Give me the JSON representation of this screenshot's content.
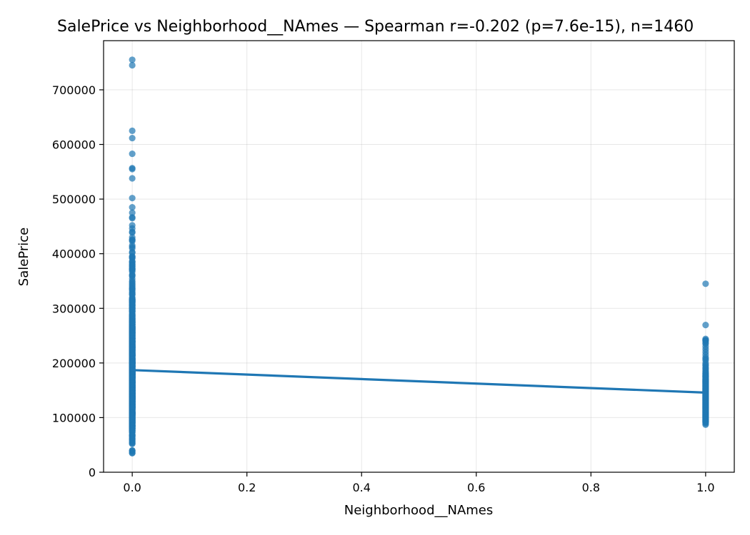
{
  "chart_data": {
    "type": "scatter",
    "title": "SalePrice vs Neighborhood__NAmes — Spearman r=-0.202 (p=7.6e-15), n=1460",
    "xlabel": "Neighborhood__NAmes",
    "ylabel": "SalePrice",
    "xlim": [
      -0.05,
      1.05
    ],
    "ylim": [
      0,
      790000
    ],
    "xticks": [
      0.0,
      0.2,
      0.4,
      0.6,
      0.8,
      1.0
    ],
    "xtick_labels": [
      "0.0",
      "0.2",
      "0.4",
      "0.6",
      "0.8",
      "1.0"
    ],
    "yticks": [
      0,
      100000,
      200000,
      300000,
      400000,
      500000,
      600000,
      700000
    ],
    "ytick_labels": [
      "0",
      "100000",
      "200000",
      "300000",
      "400000",
      "500000",
      "600000",
      "700000"
    ],
    "grid": true,
    "point_color": "#1f77b4",
    "line_color": "#1f77b4",
    "series": [
      {
        "x": 0,
        "values": [
          755000,
          745000,
          625000,
          611657,
          582933,
          556581,
          555000,
          538000,
          501837,
          485000,
          475000,
          466500,
          465000,
          451950,
          446261,
          440000,
          438780,
          430000,
          426000,
          424870,
          423000,
          415298,
          412500,
          410000,
          402861,
          402000,
          395192,
          394617,
          392500,
          392000,
          386250,
          385000,
          383970,
          381000,
          380000,
          377500,
          377426,
          375000,
          372500,
          372402,
          370878,
          369900,
          367294,
          361919,
          360000,
          359100,
          354000,
          350000,
          348000,
          345000,
          342643,
          340000,
          337500,
          336000,
          335000,
          333168,
          330000,
          328000,
          325624,
          325000,
          320000,
          318061,
          317000,
          315750,
          315500,
          315000,
          314813,
          313000,
          312500,
          311872,
          311500,
          310000,
          309000,
          307000,
          306000,
          305900,
          305000,
          303477,
          302000,
          301000,
          300000,
          299800,
          298236,
          297000,
          295493,
          295000,
          294000,
          293077,
          290000,
          289000,
          287090,
          287000,
          286000,
          285000,
          284000,
          282922,
          281213,
          281000,
          280000,
          279500,
          278000,
          277500,
          277000,
          275500,
          275000,
          274970,
          274900,
          274300,
          274000,
          272000,
          271900,
          271000,
          270000,
          269790,
          269500,
          268000,
          267000,
          266500,
          266000,
          265979,
          265900,
          265000,
          264561,
          264132,
          263435,
          263000,
          262500,
          262280,
          262000,
          261500,
          260400,
          260000,
          259500,
          259000,
          258000,
          257500,
          257000,
          256300,
          256000,
          255900,
          255500,
          255000,
          254900,
          254000,
          253293,
          253000,
          252678,
          252000,
          251000,
          250580,
          250000,
          249700,
          248900,
          248328,
          248000,
          246578,
          245700,
          245500,
          245350,
          245000,
          244600,
          244400,
          244000,
          243000,
          242000,
          241500,
          241000,
          240000,
          239900,
          239799,
          239686,
          239500,
          239000,
          238500,
          238000,
          237500,
          237000,
          236500,
          236000,
          235128,
          235000,
          234000,
          233230,
          233170,
          233000,
          232600,
          232000,
          231500,
          230500,
          230348,
          230000,
          229456,
          229000,
          228950,
          228500,
          228000,
          227875,
          227680,
          227000,
          226700,
          226000,
          225000,
          224900,
          224500,
          224000,
          223500,
          223000,
          222500,
          222000,
          221500,
          221000,
          220000,
          219500,
          219210,
          219000,
          218000,
          217500,
          217000,
          216837,
          216500,
          216000,
          215200,
          215000,
          214900,
          214500,
          214000,
          213500,
          213490,
          213250,
          213000,
          212900,
          212000,
          211000,
          210000,
          209500,
          208900,
          208500,
          208300,
          208000,
          207500,
          207000,
          206900,
          206300,
          206000,
          205950,
          205000,
          204900,
          204750,
          204000,
          203000,
          202900,
          202665,
          202500,
          202000,
          201800,
          201000,
          200624,
          200500,
          200141,
          200100,
          200000,
          199900,
          199500,
          199000,
          198900,
          198500,
          197900,
          197500,
          197000,
          196500,
          196000,
          195400,
          195000,
          194700,
          194500,
          194201,
          194000,
          193879,
          193500,
          193000,
          192500,
          192140,
          192000,
          191000,
          190000,
          189950,
          189000,
          188700,
          188500,
          188000,
          187750,
          187500,
          187100,
          187000,
          186700,
          186500,
          186000,
          185900,
          185850,
          185750,
          185500,
          185000,
          184900,
          184750,
          184100,
          184000,
          183900,
          183500,
          183200,
          183000,
          182900,
          182500,
          182000,
          181900,
          181500,
          181134,
          181000,
          180500,
          180000,
          179900,
          179665,
          179600,
          179540,
          179400,
          179200,
          179000,
          178900,
          178740,
          178400,
          178000,
          177500,
          177000,
          176500,
          176485,
          176432,
          176000,
          175900,
          175500,
          175000,
          174900,
          174500,
          174190,
          174000,
          173900,
          173733,
          173500,
          173000,
          172785,
          172500,
          172400,
          172000,
          171900,
          171750,
          171500,
          171000,
          170000,
          169990,
          169500,
          169000,
          168500,
          168000,
          167900,
          167500,
          167240,
          167000,
          166000,
          165600,
          165500,
          165400,
          165150,
          165000,
          164990,
          164900,
          164700,
          164500,
          164000,
          163990,
          163900,
          163500,
          163000,
          162900,
          162500,
          162000,
          161750,
          161500,
          161000,
          160200,
          160000,
          159895,
          159500,
          159434,
          159000,
          158900,
          158500,
          158000,
          157900,
          157500,
          157000,
          156932,
          156500,
          156000,
          155900,
          155835,
          155000,
          154900,
          154500,
          154300,
          154000,
          153900,
          153575,
          153500,
          153337,
          153000,
          152000,
          151500,
          151400,
          151000,
          150900,
          150750,
          150500,
          150000,
          149900,
          149700,
          149500,
          149350,
          149300,
          149000,
          148800,
          148500,
          148000,
          147400,
          147000,
          146800,
          146500,
          146000,
          145900,
          145500,
          145250,
          145000,
          144900,
          144500,
          144152,
          144000,
          143900,
          143750,
          143500,
          143250,
          143000,
          142953,
          142600,
          142500,
          142125,
          142000,
          141500,
          141000,
          140200,
          140000,
          139950,
          139900,
          139600,
          139500,
          139400,
          139000,
          138887,
          138800,
          138500,
          138000,
          137900,
          137500,
          137450,
          137000,
          136905,
          136900,
          136500,
          136000,
          135960,
          135900,
          135750,
          135500,
          135000,
          134900,
          134800,
          134500,
          134450,
          134432,
          134000,
          133900,
          133700,
          133500,
          133000,
          132500,
          132250,
          132000,
          131500,
          131400,
          131000,
          130500,
          130250,
          130000,
          129900,
          129500,
          129000,
          128950,
          128900,
          128500,
          128200,
          128000,
          127500,
          127000,
          126500,
          126175,
          126000,
          125500,
          125000,
          124900,
          124500,
          124000,
          123900,
          123600,
          123500,
          123000,
          122900,
          122500,
          122000,
          121600,
          121500,
          121000,
          120500,
          120000,
          119900,
          119750,
          119500,
          119200,
          119000,
          118964,
          118858,
          118500,
          118400,
          118000,
          117500,
          117000,
          116900,
          116500,
          116050,
          116000,
          115000,
          114504,
          114500,
          114000,
          113000,
          112500,
          112000,
          111250,
          111000,
          110500,
          110000,
          109900,
          109500,
          109008,
          109000,
          108959,
          108500,
          108480,
          108000,
          107900,
          107500,
          107400,
          107000,
          106500,
          106250,
          106000,
          105900,
          105500,
          105000,
          104900,
          104000,
          103600,
          103200,
          103000,
          102776,
          102000,
          101800,
          101000,
          100000,
          99900,
          99600,
          99500,
          98600,
          98300,
          98000,
          97500,
          97000,
          96500,
          96000,
          95000,
          94750,
          94500,
          94000,
          93500,
          93000,
          92900,
          92000,
          91500,
          91300,
          91000,
          90350,
          90000,
          89500,
          89471,
          88000,
          87500,
          87000,
          86000,
          85500,
          85400,
          85000,
          84900,
          84500,
          84000,
          83500,
          83000,
          82500,
          82000,
          81000,
          80500,
          80000,
          79900,
          79500,
          79000,
          78000,
          76500,
          76000,
          75500,
          75000,
          73000,
          72500,
          68500,
          68400,
          67000,
          66500,
          64500,
          62383,
          61000,
          60000,
          58500,
          55993,
          55000,
          52500,
          52000,
          40000,
          39300,
          37900,
          35311,
          34900
        ]
      },
      {
        "x": 1,
        "values": [
          345000,
          269500,
          244000,
          242000,
          241500,
          240000,
          237000,
          235000,
          230000,
          225000,
          220000,
          215000,
          210000,
          207500,
          205000,
          200000,
          197000,
          195000,
          192000,
          190000,
          187500,
          185000,
          183000,
          181000,
          180000,
          178000,
          177000,
          176000,
          175000,
          174000,
          172500,
          171000,
          170000,
          169000,
          168000,
          167000,
          166000,
          165000,
          164000,
          163000,
          162000,
          161000,
          160000,
          159000,
          158000,
          157000,
          156000,
          155000,
          154000,
          153000,
          152000,
          151000,
          150000,
          149000,
          148000,
          147000,
          146000,
          145000,
          144000,
          143000,
          142000,
          141000,
          140000,
          139000,
          138000,
          137000,
          136000,
          135000,
          134000,
          133000,
          132000,
          131000,
          130000,
          129000,
          128000,
          127000,
          126000,
          125000,
          124000,
          123000,
          122000,
          121000,
          120000,
          119000,
          118000,
          117000,
          116000,
          115000,
          114000,
          113000,
          112000,
          111000,
          110000,
          109000,
          108000,
          107000,
          106000,
          105000,
          104000,
          103000,
          102000,
          101000,
          100000,
          99000,
          98000,
          97000,
          96000,
          95000,
          94000,
          93000,
          92000,
          91000,
          89000,
          87000
        ]
      }
    ],
    "fit_line": {
      "x": [
        0,
        1
      ],
      "y": [
        187000,
        145800
      ]
    }
  }
}
